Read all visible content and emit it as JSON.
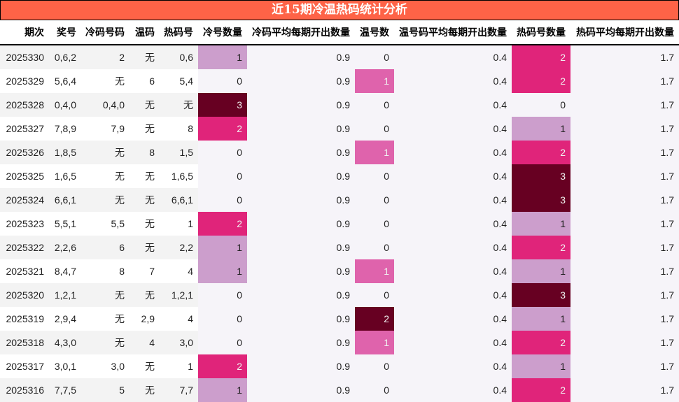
{
  "title": "近15期冷温热码统计分析",
  "columns": [
    "期次",
    "奖号",
    "冷码号码",
    "温码",
    "热码号",
    "冷号数量",
    "冷码平均每期开出数量",
    "温号数",
    "温号码平均每期开出数量",
    "热码号数量",
    "热码平均每期开出数量"
  ],
  "rows": [
    {
      "period": "2025330",
      "numbers": "0,6,2",
      "cold": "2",
      "warm": "无",
      "hot": "0,6",
      "cold_count": "1",
      "cold_avg": "0.9",
      "warm_count": "0",
      "warm_avg": "0.4",
      "hot_count": "2",
      "hot_avg": "1.7"
    },
    {
      "period": "2025329",
      "numbers": "5,6,4",
      "cold": "无",
      "warm": "6",
      "hot": "5,4",
      "cold_count": "0",
      "cold_avg": "0.9",
      "warm_count": "1",
      "warm_avg": "0.4",
      "hot_count": "2",
      "hot_avg": "1.7"
    },
    {
      "period": "2025328",
      "numbers": "0,4,0",
      "cold": "0,4,0",
      "warm": "无",
      "hot": "无",
      "cold_count": "3",
      "cold_avg": "0.9",
      "warm_count": "0",
      "warm_avg": "0.4",
      "hot_count": "0",
      "hot_avg": "1.7"
    },
    {
      "period": "2025327",
      "numbers": "7,8,9",
      "cold": "7,9",
      "warm": "无",
      "hot": "8",
      "cold_count": "2",
      "cold_avg": "0.9",
      "warm_count": "0",
      "warm_avg": "0.4",
      "hot_count": "1",
      "hot_avg": "1.7"
    },
    {
      "period": "2025326",
      "numbers": "1,8,5",
      "cold": "无",
      "warm": "8",
      "hot": "1,5",
      "cold_count": "0",
      "cold_avg": "0.9",
      "warm_count": "1",
      "warm_avg": "0.4",
      "hot_count": "2",
      "hot_avg": "1.7"
    },
    {
      "period": "2025325",
      "numbers": "1,6,5",
      "cold": "无",
      "warm": "无",
      "hot": "1,6,5",
      "cold_count": "0",
      "cold_avg": "0.9",
      "warm_count": "0",
      "warm_avg": "0.4",
      "hot_count": "3",
      "hot_avg": "1.7"
    },
    {
      "period": "2025324",
      "numbers": "6,6,1",
      "cold": "无",
      "warm": "无",
      "hot": "6,6,1",
      "cold_count": "0",
      "cold_avg": "0.9",
      "warm_count": "0",
      "warm_avg": "0.4",
      "hot_count": "3",
      "hot_avg": "1.7"
    },
    {
      "period": "2025323",
      "numbers": "5,5,1",
      "cold": "5,5",
      "warm": "无",
      "hot": "1",
      "cold_count": "2",
      "cold_avg": "0.9",
      "warm_count": "0",
      "warm_avg": "0.4",
      "hot_count": "1",
      "hot_avg": "1.7"
    },
    {
      "period": "2025322",
      "numbers": "2,2,6",
      "cold": "6",
      "warm": "无",
      "hot": "2,2",
      "cold_count": "1",
      "cold_avg": "0.9",
      "warm_count": "0",
      "warm_avg": "0.4",
      "hot_count": "2",
      "hot_avg": "1.7"
    },
    {
      "period": "2025321",
      "numbers": "8,4,7",
      "cold": "8",
      "warm": "7",
      "hot": "4",
      "cold_count": "1",
      "cold_avg": "0.9",
      "warm_count": "1",
      "warm_avg": "0.4",
      "hot_count": "1",
      "hot_avg": "1.7"
    },
    {
      "period": "2025320",
      "numbers": "1,2,1",
      "cold": "无",
      "warm": "无",
      "hot": "1,2,1",
      "cold_count": "0",
      "cold_avg": "0.9",
      "warm_count": "0",
      "warm_avg": "0.4",
      "hot_count": "3",
      "hot_avg": "1.7"
    },
    {
      "period": "2025319",
      "numbers": "2,9,4",
      "cold": "无",
      "warm": "2,9",
      "hot": "4",
      "cold_count": "0",
      "cold_avg": "0.9",
      "warm_count": "2",
      "warm_avg": "0.4",
      "hot_count": "1",
      "hot_avg": "1.7"
    },
    {
      "period": "2025318",
      "numbers": "4,3,0",
      "cold": "无",
      "warm": "4",
      "hot": "3,0",
      "cold_count": "0",
      "cold_avg": "0.9",
      "warm_count": "1",
      "warm_avg": "0.4",
      "hot_count": "2",
      "hot_avg": "1.7"
    },
    {
      "period": "2025317",
      "numbers": "3,0,1",
      "cold": "3,0",
      "warm": "无",
      "hot": "1",
      "cold_count": "2",
      "cold_avg": "0.9",
      "warm_count": "0",
      "warm_avg": "0.4",
      "hot_count": "1",
      "hot_avg": "1.7"
    },
    {
      "period": "2025316",
      "numbers": "7,7,5",
      "cold": "5",
      "warm": "无",
      "hot": "7,7",
      "cold_count": "1",
      "cold_avg": "0.9",
      "warm_count": "0",
      "warm_avg": "0.4",
      "hot_count": "2",
      "hot_avg": "1.7"
    }
  ],
  "colors": {
    "title_bg": "#ff6347",
    "count_1": "#cc9ecc",
    "count_2": "#e0247a",
    "count_3": "#670022",
    "warm_1": "#df63ac",
    "warm_2": "#670022"
  }
}
